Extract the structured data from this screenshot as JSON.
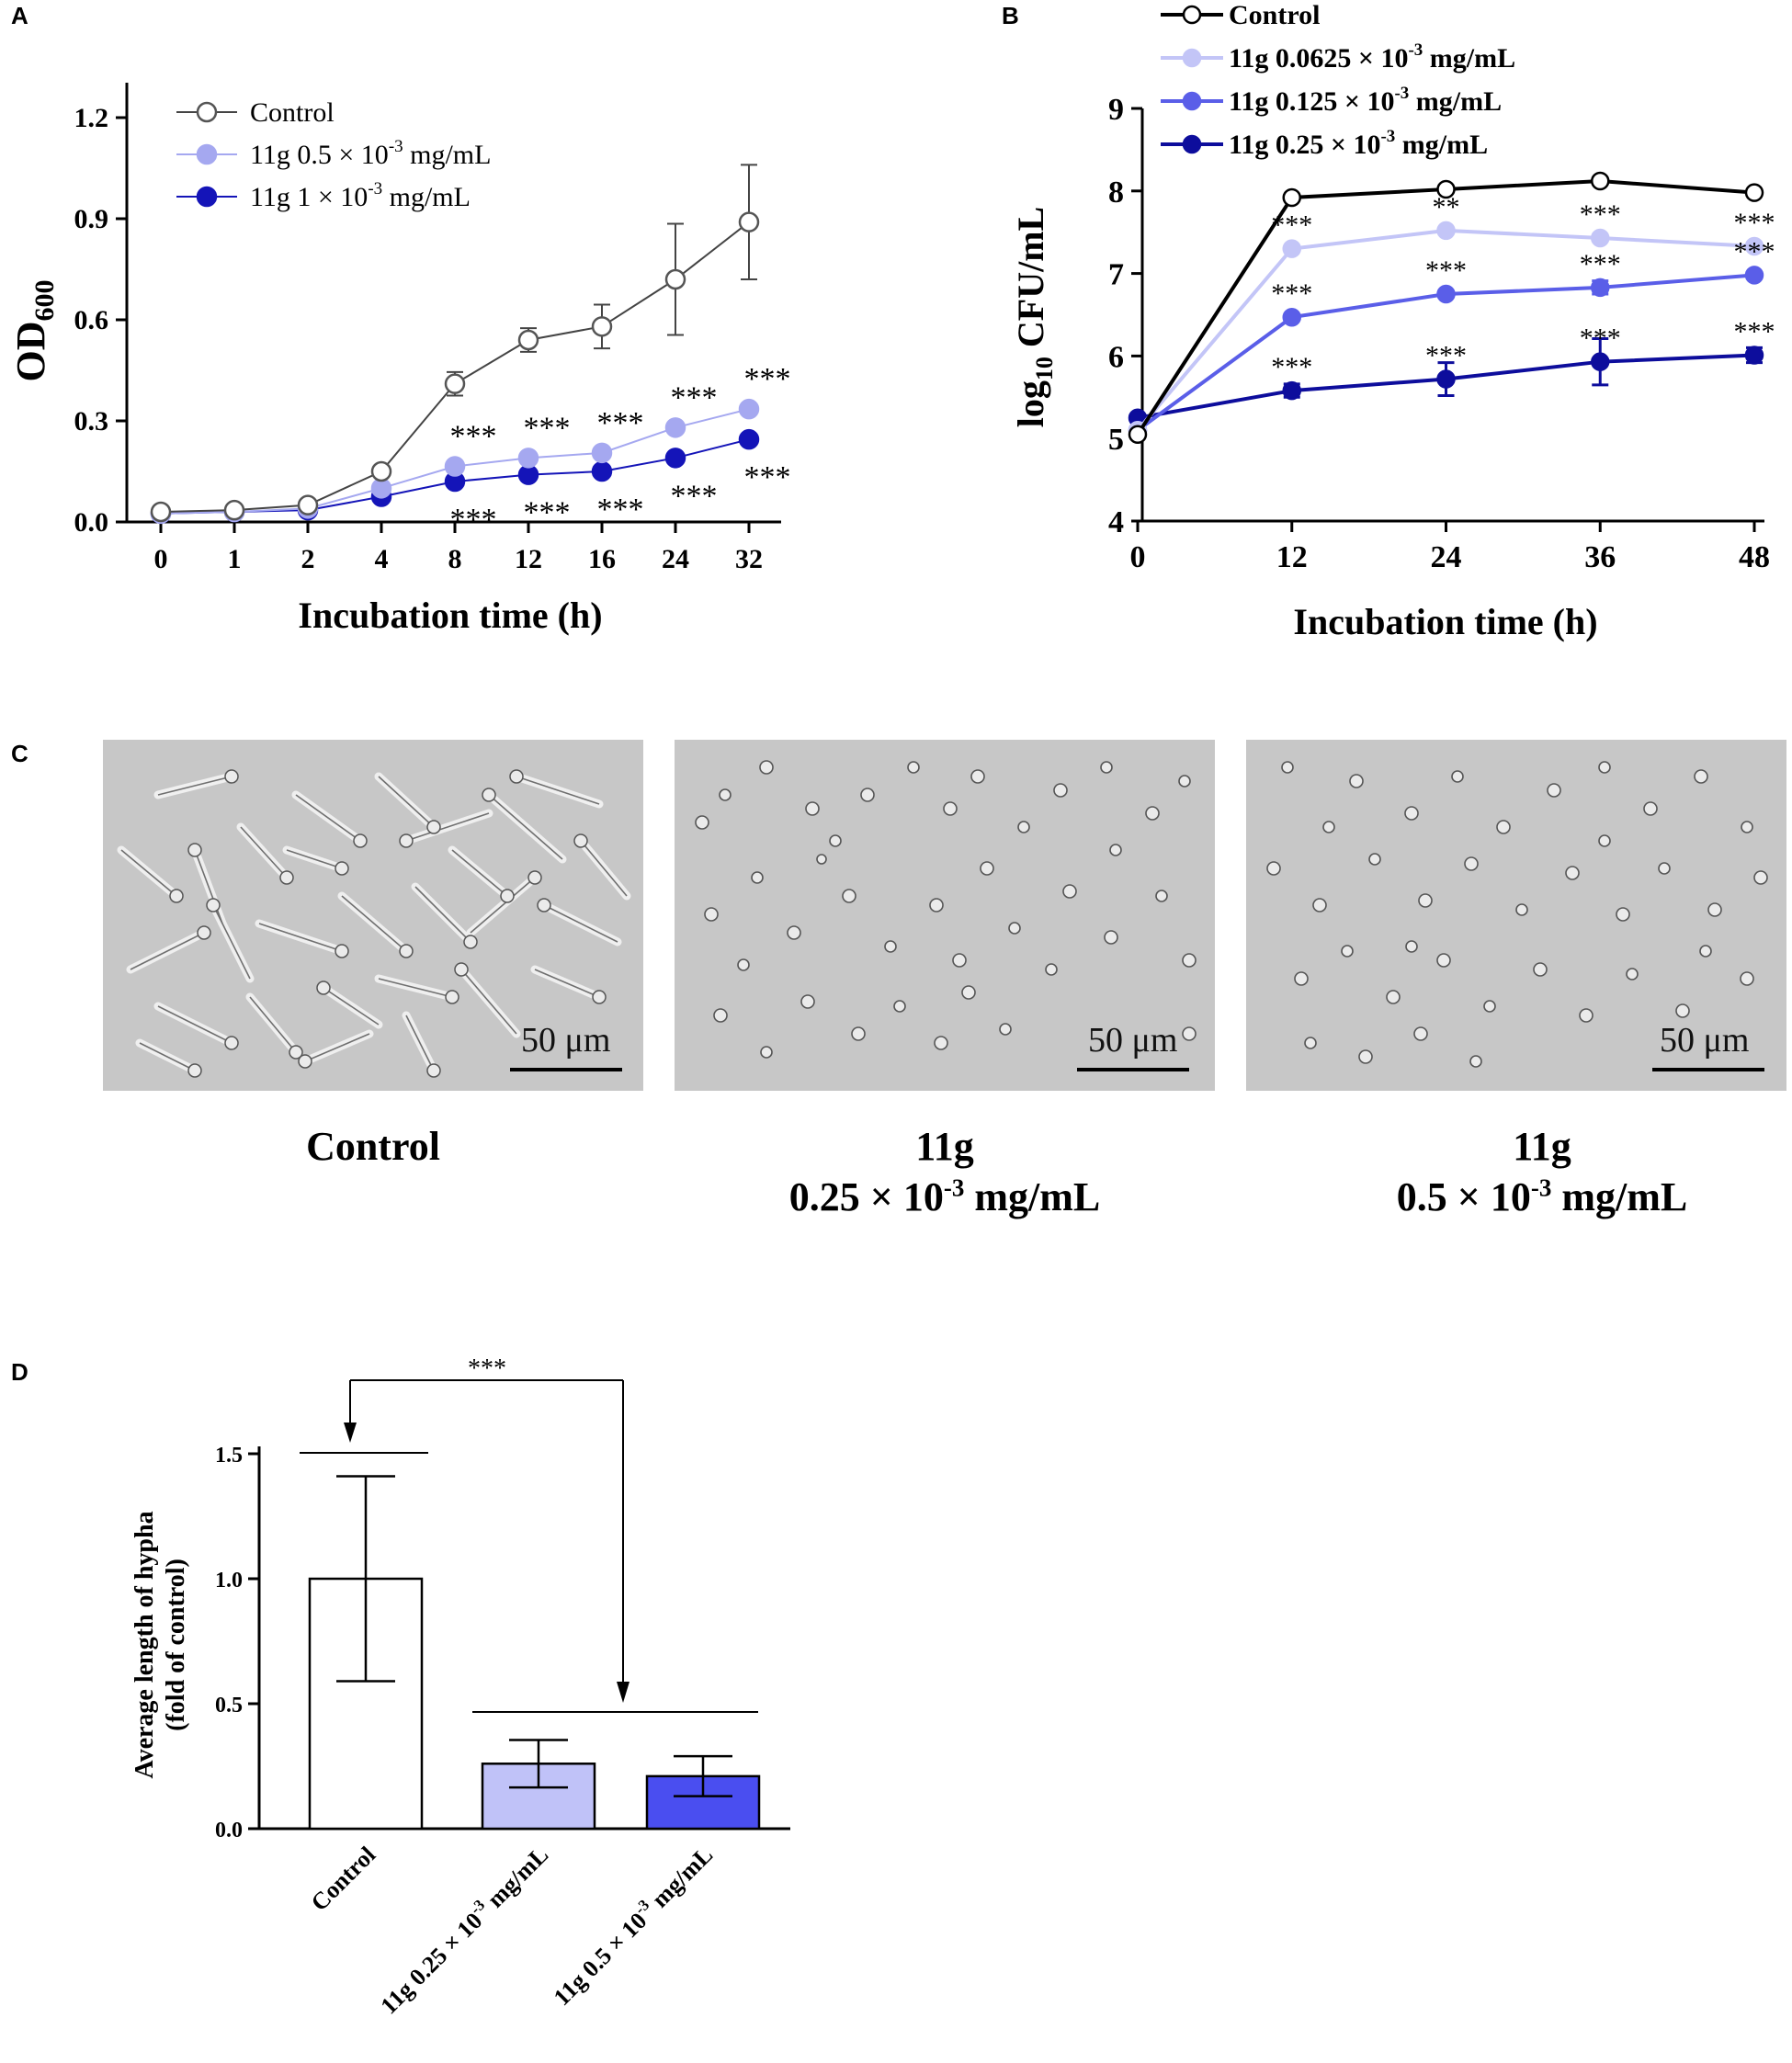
{
  "panels": {
    "a": "A",
    "b": "B",
    "c": "C",
    "d": "D"
  },
  "superscript_minus3": "-3",
  "chart_data": [
    {
      "id": "A",
      "type": "line",
      "ylabel_main": "OD",
      "ylabel_sub": "600",
      "xlabel": "Incubation time (h)",
      "categories": [
        "0",
        "1",
        "2",
        "4",
        "8",
        "12",
        "16",
        "24",
        "32"
      ],
      "ylim": [
        0,
        1.2
      ],
      "yticks": [
        "0.0",
        "0.3",
        "0.6",
        "0.9",
        "1.2"
      ],
      "legend_position": "top-left",
      "series": [
        {
          "name": "Control",
          "prefix": "Control",
          "suffix": "",
          "color": "#ffffff",
          "stroke": "#555555",
          "values": [
            0.03,
            0.035,
            0.05,
            0.15,
            0.41,
            0.54,
            0.58,
            0.72,
            0.89
          ],
          "errors": [
            0.005,
            0.005,
            0.005,
            0.01,
            0.035,
            0.035,
            0.065,
            0.165,
            0.17
          ]
        },
        {
          "name": "11g 0.5 × 10-3 mg/mL",
          "prefix": "11g 0.5 × 10",
          "suffix": " mg/mL",
          "color": "#a5a8f0",
          "stroke": "#a5a8f0",
          "values": [
            0.025,
            0.03,
            0.04,
            0.1,
            0.165,
            0.19,
            0.205,
            0.28,
            0.335
          ],
          "errors": [
            0,
            0,
            0,
            0,
            0,
            0,
            0,
            0,
            0
          ]
        },
        {
          "name": "11g 1 × 10-3 mg/mL",
          "prefix": "11g 1 × 10",
          "suffix": " mg/mL",
          "color": "#1414b8",
          "stroke": "#1414b8",
          "values": [
            0.025,
            0.03,
            0.035,
            0.075,
            0.12,
            0.14,
            0.15,
            0.19,
            0.245
          ],
          "errors": [
            0,
            0,
            0,
            0,
            0,
            0,
            0,
            0,
            0
          ]
        }
      ],
      "annotations_above": [
        "",
        "",
        "",
        "",
        "***",
        "***",
        "***",
        "***",
        "***"
      ],
      "annotations_below": [
        "",
        "",
        "",
        "",
        "***",
        "***",
        "***",
        "***",
        "***"
      ]
    },
    {
      "id": "B",
      "type": "line",
      "ylabel_main": "log",
      "ylabel_sub": "10",
      "ylabel_rest": " CFU/mL",
      "xlabel": "Incubation time (h)",
      "x": [
        0,
        12,
        24,
        36,
        48
      ],
      "xticks": [
        "0",
        "12",
        "24",
        "36",
        "48"
      ],
      "ylim": [
        4,
        9
      ],
      "yticks": [
        "4",
        "5",
        "6",
        "7",
        "8",
        "9"
      ],
      "legend_position": "top",
      "series": [
        {
          "name": "Control",
          "prefix": "Control",
          "suffix": "",
          "color": "#ffffff",
          "stroke": "#000000",
          "line": "#000000",
          "values": [
            5.05,
            7.92,
            8.02,
            8.12,
            7.98
          ],
          "errors": [
            0,
            0,
            0,
            0,
            0
          ]
        },
        {
          "name": "11g 0.0625 × 10-3 mg/mL",
          "prefix": "11g 0.0625 × 10",
          "suffix": " mg/mL",
          "color": "#c3c5f7",
          "stroke": "#c3c5f7",
          "line": "#c3c5f7",
          "values": [
            5.1,
            7.3,
            7.52,
            7.43,
            7.33
          ],
          "errors": [
            0,
            0,
            0,
            0,
            0
          ]
        },
        {
          "name": "11g 0.125 × 10-3 mg/mL",
          "prefix": "11g 0.125 × 10",
          "suffix": " mg/mL",
          "color": "#5a5ee8",
          "stroke": "#5a5ee8",
          "line": "#5a5ee8",
          "values": [
            5.1,
            6.47,
            6.75,
            6.83,
            6.98
          ],
          "errors": [
            0,
            0,
            0,
            0.08,
            0
          ]
        },
        {
          "name": "11g 0.25 × 10-3 mg/mL",
          "prefix": "11g 0.25 × 10",
          "suffix": " mg/mL",
          "color": "#0d0d9c",
          "stroke": "#0d0d9c",
          "line": "#0d0d9c",
          "values": [
            5.25,
            5.58,
            5.72,
            5.93,
            6.01
          ],
          "errors": [
            0,
            0.08,
            0.2,
            0.28,
            0.09
          ]
        }
      ],
      "annotations": [
        {
          "series": 1,
          "labels": [
            "",
            "***",
            "**",
            "***",
            "***"
          ]
        },
        {
          "series": 2,
          "labels": [
            "",
            "***",
            "***",
            "***",
            "***"
          ]
        },
        {
          "series": 3,
          "labels": [
            "",
            "***",
            "***",
            "***",
            "***"
          ]
        }
      ]
    },
    {
      "id": "D",
      "type": "bar",
      "ylabel_line1": "Average length of hypha",
      "ylabel_line2": "(fold of control)",
      "categories": [
        "Control",
        "11g 0.25 × 10-3 mg/mL",
        "11g 0.5 × 10-3 mg/mL"
      ],
      "category_prefix": [
        "Control",
        "11g 0.25 × 10",
        "11g 0.5 × 10"
      ],
      "category_suffix": [
        "",
        "  mg/mL",
        "  mg/mL"
      ],
      "category_has_sup": [
        false,
        true,
        true
      ],
      "values": [
        1.0,
        0.26,
        0.21
      ],
      "errors": [
        0.41,
        0.095,
        0.08
      ],
      "colors": [
        "#ffffff",
        "#c0c2f8",
        "#4a4ef0"
      ],
      "ylim": [
        0,
        1.5
      ],
      "yticks": [
        "0.0",
        "0.5",
        "1.0",
        "1.5"
      ],
      "significance": "***"
    }
  ],
  "micrographs": [
    {
      "scale_label": "50 μm",
      "caption_line1": "Control",
      "caption_line2": "",
      "caption_has_sup": false
    },
    {
      "scale_label": "50 μm",
      "caption_line1": "11g",
      "caption_line2_prefix": "0.25 × 10",
      "caption_line2_suffix": " mg/mL",
      "caption_has_sup": true
    },
    {
      "scale_label": "50 μm",
      "caption_line1": "11g",
      "caption_line2_prefix": "0.5 × 10",
      "caption_line2_suffix": " mg/mL",
      "caption_has_sup": true
    }
  ]
}
